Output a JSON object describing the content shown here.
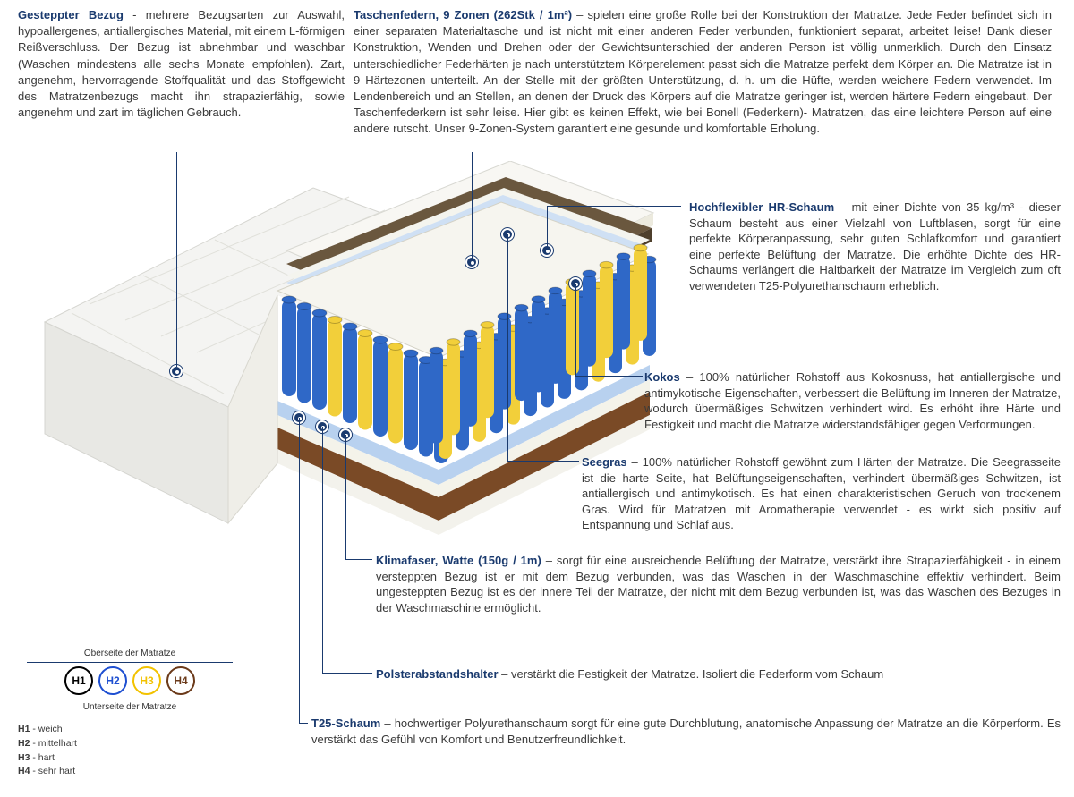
{
  "topLeft": {
    "title": "Gesteppter Bezug",
    "body": " - mehrere Bezugsarten zur Auswahl, hypoallergenes, antiallergisches Material, mit einem L-förmigen Reißverschluss. Der Bezug ist abnehmbar und waschbar (Waschen mindestens alle sechs Monate empfohlen). Zart, angenehm, hervorragende Stoffqualität und das Stoffgewicht des Matratzenbezugs macht ihn strapazierfähig, sowie angenehm und zart im täglichen Gebrauch."
  },
  "topRight": {
    "title": "Taschenfedern, 9 Zonen (262Stk / 1m²)",
    "body": " – spielen eine große Rolle bei der Konstruktion der Matratze. Jede Feder befindet sich in einer separaten Materialtasche und ist nicht mit einer anderen Feder verbunden, funktioniert separat, arbeitet leise! Dank dieser Konstruktion, Wenden und Drehen oder der Gewichtsunterschied der anderen Person ist völlig unmerklich. Durch den Einsatz unterschiedlicher Federhärten je nach unterstütztem Körperelement passt sich die Matratze perfekt dem Körper an. Die Matratze ist in 9 Härtezonen unterteilt. An der Stelle mit der größten Unterstützung, d. h. um die Hüfte, werden weichere Federn verwendet. Im Lendenbereich und an Stellen, an denen der Druck des Körpers auf die Matratze geringer ist, werden härtere Federn eingebaut. Der Taschenfederkern ist sehr leise. Hier gibt es keinen Effekt, wie bei Bonell (Federkern)- Matratzen, das eine leichtere Person auf eine andere rutscht. Unser 9-Zonen-System garantiert eine gesunde und komfortable Erholung."
  },
  "callouts": {
    "hrSchaum": {
      "title": "Hochflexibler HR-Schaum",
      "body": " – mit einer Dichte von 35 kg/m³ - dieser Schaum besteht aus einer Vielzahl von Luftblasen, sorgt für eine perfekte Körperanpassung, sehr guten Schlafkomfort und garantiert eine perfekte Belüftung der Matratze. Die erhöhte Dichte des HR-Schaums verlängert die Haltbarkeit der Matratze im Vergleich zum oft verwendeten T25-Polyurethanschaum erheblich."
    },
    "kokos": {
      "title": "Kokos",
      "body": " – 100% natürlicher Rohstoff aus Kokosnuss, hat antiallergische und antimykotische Eigenschaften, verbessert die Belüftung im Inneren der Matratze, wodurch übermäßiges Schwitzen verhindert wird. Es erhöht ihre Härte und Festigkeit und macht die Matratze widerstandsfähiger gegen Verformungen."
    },
    "seegras": {
      "title": "Seegras",
      "body": " – 100% natürlicher Rohstoff gewöhnt zum Härten der Matratze. Die Seegrasseite ist die harte Seite, hat Belüftungseigenschaften, verhindert übermäßiges Schwitzen, ist antiallergisch und antimykotisch. Es hat einen charakteristischen Geruch von trockenem Gras. Wird für Matratzen mit Aromatherapie verwendet - es wirkt sich positiv auf Entspannung und Schlaf aus."
    },
    "klimafaser": {
      "title": "Klimafaser, Watte (150g / 1m)",
      "body": " – sorgt für eine ausreichende Belüftung der Matratze, verstärkt ihre Strapazierfähigkeit - in einem versteppten Bezug ist er mit dem Bezug verbunden, was das Waschen in der Waschmaschine effektiv verhindert. Beim ungesteppten Bezug ist es der innere Teil der Matratze, der nicht mit dem Bezug verbunden ist, was das Waschen des Bezuges in der Waschmaschine ermöglicht."
    },
    "polster": {
      "title": "Polsterabstandshalter",
      "body": " – verstärkt die Festigkeit der Matratze. Isoliert die Federform vom Schaum"
    },
    "t25": {
      "title": "T25-Schaum",
      "body": " – hochwertiger Polyurethanschaum sorgt für eine gute Durchblutung, anatomische Anpassung der Matratze an die Körperform. Es verstärkt das Gefühl von Komfort und Benutzerfreundlichkeit."
    }
  },
  "legend": {
    "topLabel": "Oberseite der Matratze",
    "bottomLabel": "Unterseite der Matratze",
    "circles": [
      {
        "label": "H1",
        "border": "#000000",
        "text": "#000000"
      },
      {
        "label": "H2",
        "border": "#1e4fd1",
        "text": "#1e4fd1"
      },
      {
        "label": "H3",
        "border": "#f2c200",
        "text": "#f2c200"
      },
      {
        "label": "H4",
        "border": "#6b3a1a",
        "text": "#6b3a1a"
      }
    ],
    "keys": [
      {
        "k": "H1",
        "v": " - weich"
      },
      {
        "k": "H2",
        "v": " - mittelhart"
      },
      {
        "k": "H3",
        "v": " - hart"
      },
      {
        "k": "H4",
        "v": " - sehr hart"
      }
    ]
  },
  "mattress": {
    "colors": {
      "outerCover": "#f4f4f2",
      "outerCoverShade": "#e2e2de",
      "seagrass": "#5a4a35",
      "foamWhite": "#f8f7f3",
      "foamBlue": "#cfe0f4",
      "kokos": "#7a4a26",
      "springBlue": "#2f68c7",
      "springYellow": "#f2cf3a",
      "accent": "#1a3a6e"
    }
  }
}
